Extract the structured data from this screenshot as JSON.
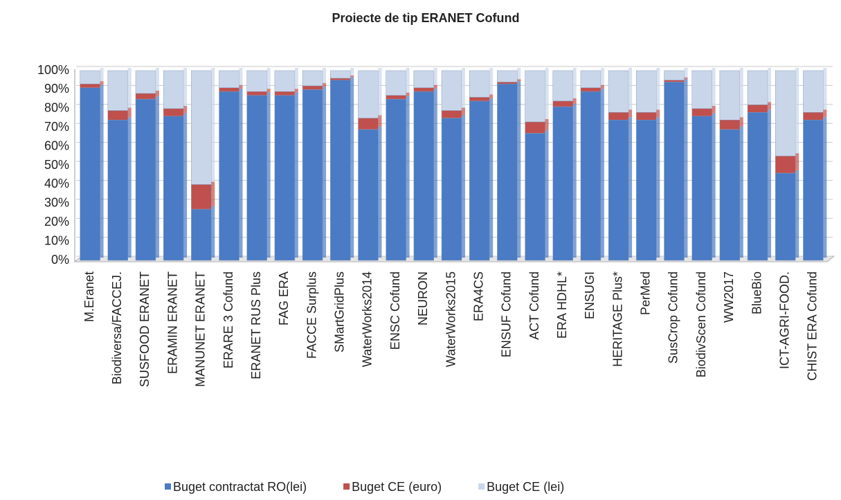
{
  "chart_data": {
    "type": "stacked_bar",
    "title": "Proiecte de tip ERANET Cofund",
    "categories": [
      "M.Eranet",
      "Biodiversa/FACCEJ.",
      "SUSFOOD ERANET",
      "ERAMIN ERANET",
      "MANUNET ERANET",
      "ERARE 3 Cofund",
      "ERANET RUS Plus",
      "FAG ERA",
      "FACCE Surplus",
      "SMartGridPlus",
      "WaterWorks2014",
      "ENSC Cofund",
      "NEURON",
      "WaterWorks2015",
      "ERA4CS",
      "ENSUF Cofund",
      "ACT Cofund",
      "ERA HDHL*",
      "ENSUGI",
      "HERITAGE Plus*",
      "PerMed",
      "SusCrop Cofund",
      "BiodivScen Cofund",
      "WW2017",
      "BlueBio",
      "ICT-AGRI-FOOD.",
      "CHIST ERA Cofund"
    ],
    "series": [
      {
        "name": "Buget contractat RO(lei)",
        "color": "#4a7bc4",
        "values": [
          91,
          74,
          85,
          76,
          27,
          89,
          87,
          87,
          90,
          95,
          69,
          85,
          89,
          75,
          84,
          93,
          67,
          81,
          89,
          74,
          74,
          94,
          76,
          69,
          78,
          46,
          74
        ]
      },
      {
        "name": "Buget CE (euro)",
        "color": "#c0504d",
        "values": [
          2,
          5,
          3,
          4,
          13,
          2,
          2,
          2,
          2,
          1,
          6,
          2,
          2,
          4,
          2,
          1,
          6,
          3,
          2,
          4,
          4,
          1,
          4,
          5,
          4,
          9,
          4
        ]
      },
      {
        "name": "Buget CE (lei)",
        "color": "#c9d6ea",
        "values": [
          7,
          21,
          12,
          20,
          60,
          9,
          11,
          11,
          8,
          4,
          25,
          13,
          9,
          21,
          14,
          6,
          27,
          16,
          9,
          22,
          22,
          5,
          20,
          26,
          18,
          45,
          22
        ]
      }
    ],
    "ylim": [
      0,
      100
    ],
    "yticks": [
      {
        "value": 0,
        "label": "0%"
      },
      {
        "value": 10,
        "label": "10%"
      },
      {
        "value": 20,
        "label": "20%"
      },
      {
        "value": 30,
        "label": "30%"
      },
      {
        "value": 40,
        "label": "40%"
      },
      {
        "value": 50,
        "label": "50%"
      },
      {
        "value": 60,
        "label": "60%"
      },
      {
        "value": 70,
        "label": "70%"
      },
      {
        "value": 80,
        "label": "80%"
      },
      {
        "value": 90,
        "label": "90%"
      },
      {
        "value": 100,
        "label": "100%"
      }
    ],
    "grid": true,
    "legend": "bottom"
  }
}
